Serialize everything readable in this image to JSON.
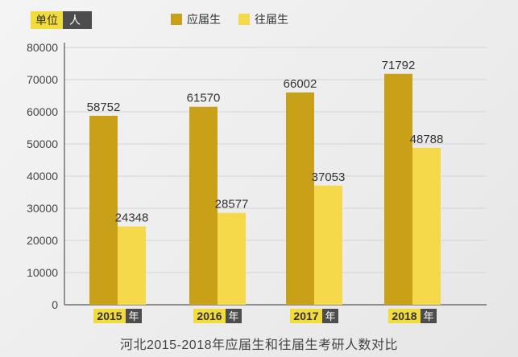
{
  "chart_data": {
    "type": "bar",
    "title": "河北2015-2018年应届生和往届生考研人数对比",
    "unit_label": "单位",
    "unit_value": "人",
    "categories": [
      "2015",
      "2016",
      "2017",
      "2018"
    ],
    "category_suffix": "年",
    "series": [
      {
        "name": "应届生",
        "color": "#c9a118",
        "values": [
          58752,
          61570,
          66002,
          71792
        ]
      },
      {
        "name": "往届生",
        "color": "#f5d94a",
        "values": [
          24348,
          28577,
          37053,
          48788
        ]
      }
    ],
    "ylim": [
      0,
      80000
    ],
    "yticks": [
      "0",
      "10000",
      "20000",
      "30000",
      "40000",
      "50000",
      "60000",
      "70000",
      "80000"
    ],
    "grid": true,
    "legend": "top"
  }
}
